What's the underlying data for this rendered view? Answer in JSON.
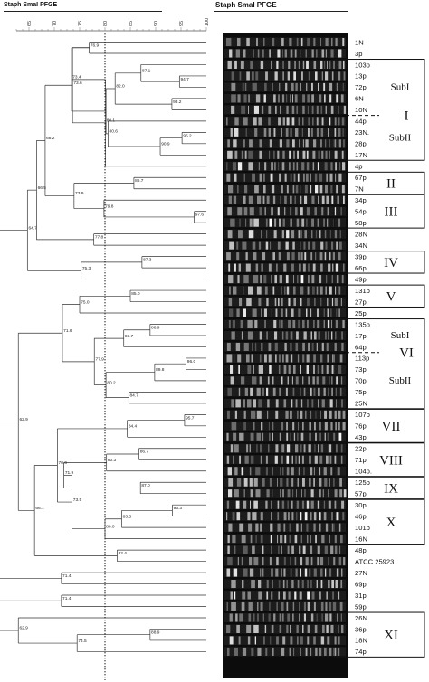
{
  "header": {
    "left_title": "Staph SmaI PFGE",
    "right_title": "Staph SmaI PFGE"
  },
  "scale": {
    "ticks": [
      "65",
      "70",
      "75",
      "80",
      "85",
      "90",
      "95",
      "100"
    ],
    "cutoff": 80
  },
  "lanes": [
    "1N",
    "3p",
    "103p",
    "13p",
    "72p",
    "6N",
    "10N",
    "44p",
    "23N.",
    "28p",
    "17N",
    "4p",
    "67p",
    "7N",
    "34p",
    "54p",
    "58p",
    "28N",
    "34N",
    "39p",
    "66p",
    "49p",
    "131p",
    "27p.",
    "25p",
    "135p",
    "17p",
    "64p",
    "113p",
    "73p",
    "70p",
    "75p",
    "25N",
    "107p",
    "76p",
    "43p",
    "22p",
    "71p",
    "104p.",
    "125p",
    "57p",
    "30p",
    "46p",
    "101p",
    "16N",
    "48p",
    "ATCC 25923",
    "27N",
    "69p",
    "31p",
    "59p",
    "26N",
    "36p.",
    "18N",
    "74p"
  ],
  "groups": [
    {
      "label": "I",
      "first": 2,
      "last": 10,
      "subgroups": [
        {
          "label": "SubI",
          "first": 2,
          "last": 6
        },
        {
          "label": "SubII",
          "first": 7,
          "last": 10
        }
      ]
    },
    {
      "label": "II",
      "first": 12,
      "last": 13,
      "subgroups": []
    },
    {
      "label": "III",
      "first": 14,
      "last": 16,
      "subgroups": []
    },
    {
      "label": "IV",
      "first": 19,
      "last": 20,
      "subgroups": []
    },
    {
      "label": "V",
      "first": 22,
      "last": 23,
      "subgroups": []
    },
    {
      "label": "VI",
      "first": 25,
      "last": 32,
      "subgroups": [
        {
          "label": "SubI",
          "first": 25,
          "last": 27
        },
        {
          "label": "SubII",
          "first": 28,
          "last": 32
        }
      ]
    },
    {
      "label": "VII",
      "first": 33,
      "last": 35,
      "subgroups": []
    },
    {
      "label": "VIII",
      "first": 36,
      "last": 38,
      "subgroups": []
    },
    {
      "label": "IX",
      "first": 39,
      "last": 40,
      "subgroups": []
    },
    {
      "label": "X",
      "first": 41,
      "last": 44,
      "subgroups": []
    },
    {
      "label": "XI",
      "first": 51,
      "last": 54,
      "subgroups": []
    }
  ],
  "nodes": [
    {
      "id": "a",
      "s": 76.9,
      "l": "76.9",
      "c": [
        0,
        1
      ]
    },
    {
      "id": "b",
      "s": 94.7,
      "l": "94.7",
      "c": [
        3,
        4
      ]
    },
    {
      "id": "c",
      "s": 87.1,
      "l": "87.1",
      "c": [
        2,
        "b"
      ]
    },
    {
      "id": "d",
      "s": 93.2,
      "l": "93.2",
      "c": [
        5,
        6
      ]
    },
    {
      "id": "e",
      "s": 82.0,
      "l": "82.0",
      "c": [
        "c",
        "d"
      ]
    },
    {
      "id": "f",
      "s": 95.2,
      "l": "95.2",
      "c": [
        8,
        9
      ]
    },
    {
      "id": "g",
      "s": 90.9,
      "l": "90.9",
      "c": [
        "f",
        10
      ]
    },
    {
      "id": "h",
      "s": 80.6,
      "l": "80.6",
      "c": [
        7,
        "g"
      ]
    },
    {
      "id": "i",
      "s": 80.2,
      "l": "",
      "c": [
        "e",
        "h"
      ]
    },
    {
      "id": "j",
      "s": 73.4,
      "l": "73.4",
      "c": [
        "a",
        "i"
      ]
    },
    {
      "id": "k",
      "s": 80.1,
      "l": "80.1",
      "c": [
        "j",
        11
      ]
    },
    {
      "id": "m",
      "s": 73.6,
      "l": "73.6",
      "c": [
        "a",
        "k"
      ]
    },
    {
      "id": "n",
      "s": 85.7,
      "l": "85.7",
      "c": [
        12,
        13
      ]
    },
    {
      "id": "o",
      "s": 97.6,
      "l": "97.6",
      "c": [
        15,
        16
      ]
    },
    {
      "id": "p",
      "s": 79.8,
      "l": "79.8",
      "c": [
        14,
        "o"
      ]
    },
    {
      "id": "q",
      "s": 73.9,
      "l": "73.9",
      "c": [
        "n",
        "p"
      ]
    },
    {
      "id": "r",
      "s": 68.2,
      "l": "68.2",
      "c": [
        "m",
        "q"
      ]
    },
    {
      "id": "s",
      "s": 77.8,
      "l": "77.8",
      "c": [
        17,
        18
      ]
    },
    {
      "id": "t",
      "s": 87.3,
      "l": "87.3",
      "c": [
        19,
        20
      ]
    },
    {
      "id": "u",
      "s": 75.3,
      "l": "75.3",
      "c": [
        "t",
        21
      ]
    },
    {
      "id": "v",
      "s": 66.5,
      "l": "66.5",
      "c": [
        "r",
        "s"
      ]
    },
    {
      "id": "w",
      "s": 64.7,
      "l": "64.7",
      "c": [
        "v",
        "u"
      ]
    },
    {
      "id": "x",
      "s": 85.0,
      "l": "85.0",
      "c": [
        22,
        23
      ]
    },
    {
      "id": "y",
      "s": 75.0,
      "l": "75.0",
      "c": [
        "x",
        24
      ]
    },
    {
      "id": "z",
      "s": 88.9,
      "l": "88.9",
      "c": [
        25,
        26
      ]
    },
    {
      "id": "aa",
      "s": 83.7,
      "l": "83.7",
      "c": [
        "z",
        27
      ]
    },
    {
      "id": "ab",
      "s": 96.0,
      "l": "96.0",
      "c": [
        28,
        29
      ]
    },
    {
      "id": "ac",
      "s": 89.8,
      "l": "89.8",
      "c": [
        "ab",
        30
      ]
    },
    {
      "id": "ad",
      "s": 84.7,
      "l": "84.7",
      "c": [
        31,
        32
      ]
    },
    {
      "id": "ae",
      "s": 80.2,
      "l": "80.2",
      "c": [
        "ac",
        "ad"
      ]
    },
    {
      "id": "af",
      "s": 77.9,
      "l": "77.9",
      "c": [
        "aa",
        "ae"
      ]
    },
    {
      "id": "ag",
      "s": 71.6,
      "l": "71.6",
      "c": [
        "y",
        "af"
      ]
    },
    {
      "id": "ah",
      "s": 95.7,
      "l": "95.7",
      "c": [
        33,
        34
      ]
    },
    {
      "id": "ai",
      "s": 84.4,
      "l": "84.4",
      "c": [
        "ah",
        35
      ]
    },
    {
      "id": "aj",
      "s": 86.7,
      "l": "86.7",
      "c": [
        36,
        37
      ]
    },
    {
      "id": "ak",
      "s": 80.3,
      "l": "80.3",
      "c": [
        "aj",
        38
      ]
    },
    {
      "id": "al",
      "s": 87.0,
      "l": "87.0",
      "c": [
        39,
        40
      ]
    },
    {
      "id": "am",
      "s": 71.9,
      "l": "71.9",
      "c": [
        "ak",
        "al"
      ]
    },
    {
      "id": "an",
      "s": 93.3,
      "l": "93.3",
      "c": [
        41,
        42
      ]
    },
    {
      "id": "ao",
      "s": 83.3,
      "l": "83.3",
      "c": [
        "an",
        43
      ]
    },
    {
      "id": "ap",
      "s": 80.0,
      "l": "80.0",
      "c": [
        "ao",
        44
      ]
    },
    {
      "id": "aq",
      "s": 73.5,
      "l": "73.5",
      "c": [
        "am",
        "ap"
      ]
    },
    {
      "id": "ar",
      "s": 70.6,
      "l": "70.6",
      "c": [
        "ai",
        "aq"
      ]
    },
    {
      "id": "as",
      "s": 82.4,
      "l": "82.4",
      "c": [
        45,
        46
      ]
    },
    {
      "id": "at",
      "s": 66.1,
      "l": "66.1",
      "c": [
        "ar",
        "as"
      ]
    },
    {
      "id": "au",
      "s": 71.4,
      "l": "71.4",
      "c": [
        47,
        48
      ]
    },
    {
      "id": "av",
      "s": 62.9,
      "l": "62.9",
      "c": [
        "ag",
        "at"
      ]
    },
    {
      "id": "aw",
      "s": 71.4,
      "l": "71.4",
      "c": [
        49,
        50
      ]
    },
    {
      "id": "ax",
      "s": 88.9,
      "l": "88.9",
      "c": [
        52,
        53
      ]
    },
    {
      "id": "ay",
      "s": 74.5,
      "l": "74.5",
      "c": [
        "ax",
        54
      ]
    },
    {
      "id": "az",
      "s": 62.9,
      "l": "62.9",
      "c": [
        51,
        "ay"
      ]
    },
    {
      "id": "ba",
      "s": 57.3,
      "l": "57.3",
      "c": [
        "w",
        "av"
      ]
    },
    {
      "id": "bb",
      "s": 56.9,
      "l": "56.9",
      "c": [
        "ba",
        "au",
        "aw",
        "az"
      ]
    }
  ]
}
